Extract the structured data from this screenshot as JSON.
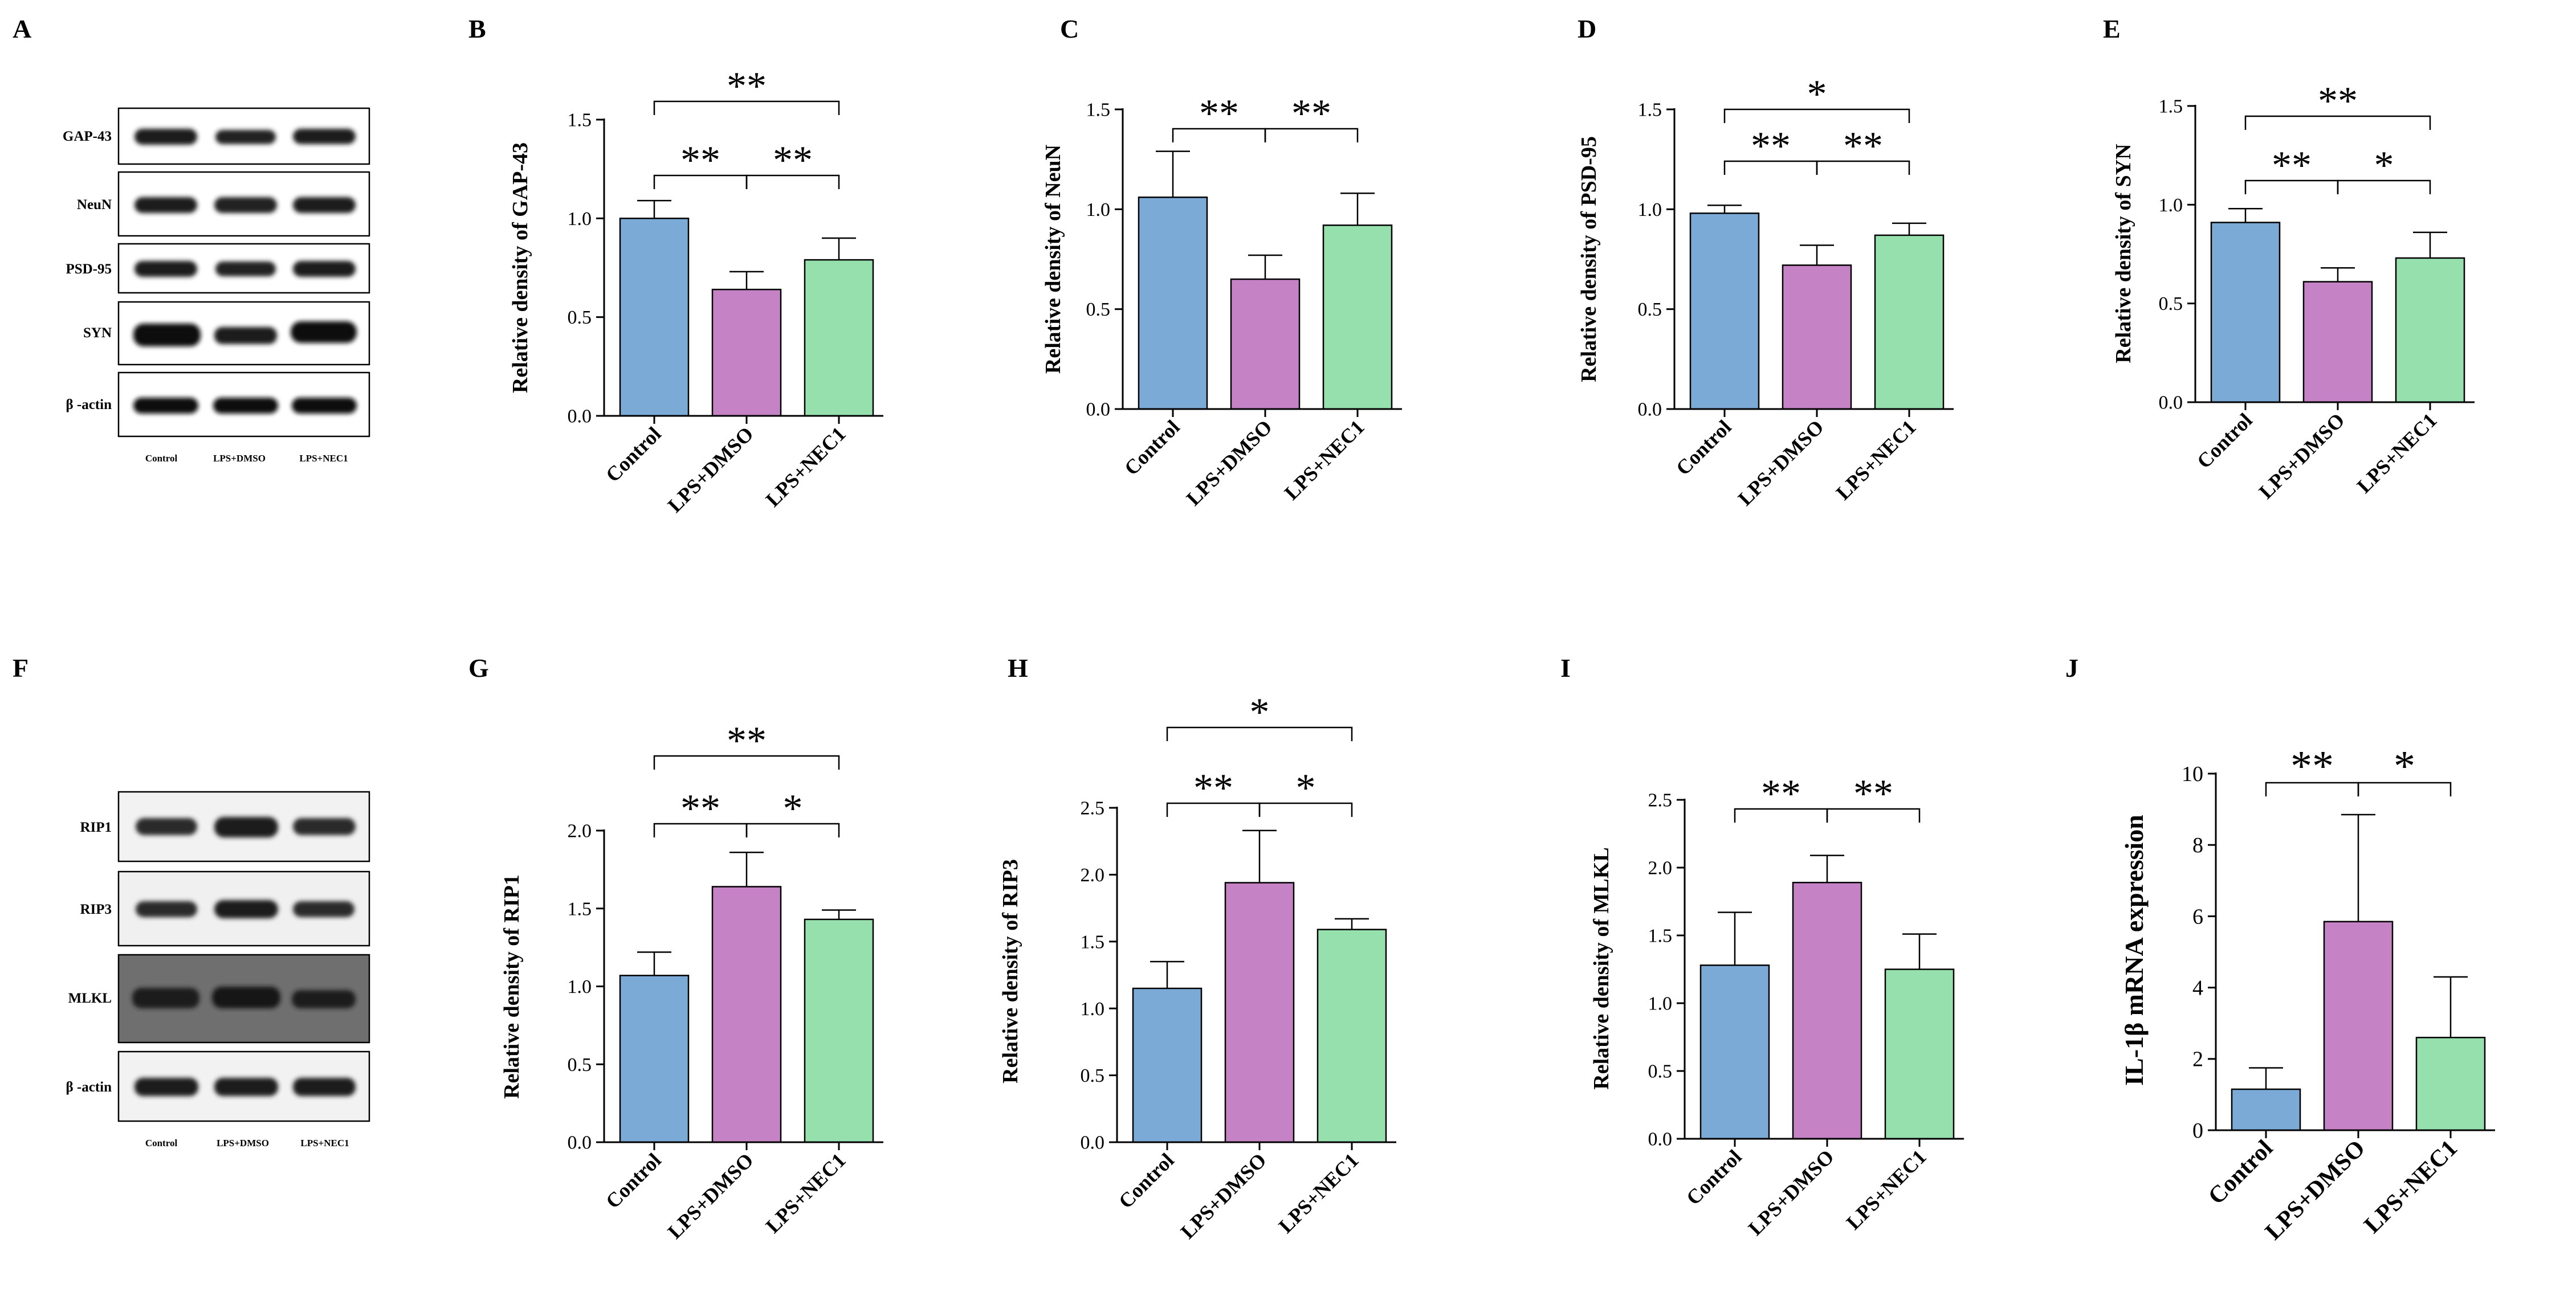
{
  "colors": {
    "control": "#7BAAD6",
    "lps_dmso": "#C583C5",
    "lps_nec1": "#96E0AE",
    "axis": "#000000"
  },
  "blots": [
    {
      "letter": "A",
      "proteins": [
        "GAP-43",
        "NeuN",
        "PSD-95",
        "SYN",
        "β -actin"
      ],
      "conditions": [
        "Control",
        "LPS+DMSO",
        "LPS+NEC1"
      ]
    },
    {
      "letter": "F",
      "proteins": [
        "RIP1",
        "RIP3",
        "MLKL",
        "β -actin"
      ],
      "conditions": [
        "Control",
        "LPS+DMSO",
        "LPS+NEC1"
      ]
    }
  ],
  "chart_data": [
    {
      "letter": "B",
      "type": "bar",
      "categories": [
        "Control",
        "LPS+DMSO",
        "LPS+NEC1"
      ],
      "values": [
        1.0,
        0.64,
        0.79
      ],
      "errors": [
        0.09,
        0.09,
        0.11
      ],
      "ylabel": "Relative density of GAP-43",
      "ylim": [
        0,
        1.5
      ],
      "ticks": [
        0.0,
        0.5,
        1.0,
        1.5
      ],
      "tick_labels": [
        "0.0",
        "0.5",
        "1.0",
        "1.5"
      ],
      "sig": [
        {
          "from": 0,
          "to": 1,
          "text": "**",
          "level": 1
        },
        {
          "from": 1,
          "to": 2,
          "text": "**",
          "level": 1
        },
        {
          "from": 0,
          "to": 2,
          "text": "**",
          "level": 2
        }
      ]
    },
    {
      "letter": "C",
      "type": "bar",
      "categories": [
        "Control",
        "LPS+DMSO",
        "LPS+NEC1"
      ],
      "values": [
        1.06,
        0.65,
        0.92
      ],
      "errors": [
        0.23,
        0.12,
        0.16
      ],
      "ylabel": "Relative density of NeuN",
      "ylim": [
        0,
        1.5
      ],
      "ticks": [
        0.0,
        0.5,
        1.0,
        1.5
      ],
      "tick_labels": [
        "0.0",
        "0.5",
        "1.0",
        "1.5"
      ],
      "sig": [
        {
          "from": 0,
          "to": 1,
          "text": "**",
          "level": 1
        },
        {
          "from": 1,
          "to": 2,
          "text": "**",
          "level": 1
        }
      ]
    },
    {
      "letter": "D",
      "type": "bar",
      "categories": [
        "Control",
        "LPS+DMSO",
        "LPS+NEC1"
      ],
      "values": [
        0.98,
        0.72,
        0.87
      ],
      "errors": [
        0.04,
        0.1,
        0.06
      ],
      "ylabel": "Relative density of PSD-95",
      "ylim": [
        0,
        1.5
      ],
      "ticks": [
        0.0,
        0.5,
        1.0,
        1.5
      ],
      "tick_labels": [
        "0.0",
        "0.5",
        "1.0",
        "1.5"
      ],
      "sig": [
        {
          "from": 0,
          "to": 1,
          "text": "**",
          "level": 1
        },
        {
          "from": 1,
          "to": 2,
          "text": "**",
          "level": 1
        },
        {
          "from": 0,
          "to": 2,
          "text": "*",
          "level": 2
        }
      ]
    },
    {
      "letter": "E",
      "type": "bar",
      "categories": [
        "Control",
        "LPS+DMSO",
        "LPS+NEC1"
      ],
      "values": [
        0.91,
        0.61,
        0.73
      ],
      "errors": [
        0.07,
        0.07,
        0.13
      ],
      "ylabel": "Relative density of SYN",
      "ylim": [
        0,
        1.5
      ],
      "ticks": [
        0.0,
        0.5,
        1.0,
        1.5
      ],
      "tick_labels": [
        "0.0",
        "0.5",
        "1.0",
        "1.5"
      ],
      "sig": [
        {
          "from": 0,
          "to": 1,
          "text": "**",
          "level": 1
        },
        {
          "from": 1,
          "to": 2,
          "text": "*",
          "level": 1
        },
        {
          "from": 0,
          "to": 2,
          "text": "**",
          "level": 2
        }
      ]
    },
    {
      "letter": "G",
      "type": "bar",
      "categories": [
        "Control",
        "LPS+DMSO",
        "LPS+NEC1"
      ],
      "values": [
        1.07,
        1.64,
        1.43
      ],
      "errors": [
        0.15,
        0.22,
        0.06
      ],
      "ylabel": "Relative density of RIP1",
      "ylim": [
        0,
        2.0
      ],
      "ticks": [
        0.0,
        0.5,
        1.0,
        1.5,
        2.0
      ],
      "tick_labels": [
        "0.0",
        "0.5",
        "1.0",
        "1.5",
        "2.0"
      ],
      "sig": [
        {
          "from": 0,
          "to": 1,
          "text": "**",
          "level": 1
        },
        {
          "from": 1,
          "to": 2,
          "text": "*",
          "level": 1
        },
        {
          "from": 0,
          "to": 2,
          "text": "**",
          "level": 2
        }
      ]
    },
    {
      "letter": "H",
      "type": "bar",
      "categories": [
        "Control",
        "LPS+DMSO",
        "LPS+NEC1"
      ],
      "values": [
        1.15,
        1.94,
        1.59
      ],
      "errors": [
        0.2,
        0.39,
        0.08
      ],
      "ylabel": "Relative density of RIP3",
      "ylim": [
        0,
        2.5
      ],
      "ticks": [
        0.0,
        0.5,
        1.0,
        1.5,
        2.0,
        2.5
      ],
      "tick_labels": [
        "0.0",
        "0.5",
        "1.0",
        "1.5",
        "2.0",
        "2.5"
      ],
      "sig": [
        {
          "from": 0,
          "to": 1,
          "text": "**",
          "level": 1
        },
        {
          "from": 1,
          "to": 2,
          "text": "*",
          "level": 1
        },
        {
          "from": 0,
          "to": 2,
          "text": "*",
          "level": 2
        }
      ]
    },
    {
      "letter": "I",
      "type": "bar",
      "categories": [
        "Control",
        "LPS+DMSO",
        "LPS+NEC1"
      ],
      "values": [
        1.28,
        1.89,
        1.25
      ],
      "errors": [
        0.39,
        0.2,
        0.26
      ],
      "ylabel": "Relative density of MLKL",
      "ylim": [
        0,
        2.5
      ],
      "ticks": [
        0.0,
        0.5,
        1.0,
        1.5,
        2.0,
        2.5
      ],
      "tick_labels": [
        "0.0",
        "0.5",
        "1.0",
        "1.5",
        "2.0",
        "2.5"
      ],
      "sig": [
        {
          "from": 0,
          "to": 1,
          "text": "**",
          "level": 1
        },
        {
          "from": 1,
          "to": 2,
          "text": "**",
          "level": 1
        }
      ]
    },
    {
      "letter": "J",
      "type": "bar",
      "categories": [
        "Control",
        "LPS+DMSO",
        "LPS+NEC1"
      ],
      "values": [
        1.15,
        5.85,
        2.6
      ],
      "errors": [
        0.6,
        3.0,
        1.7
      ],
      "ylabel": "IL-1β mRNA expression",
      "ylim": [
        0,
        10
      ],
      "ticks": [
        0,
        2,
        4,
        6,
        8,
        10
      ],
      "tick_labels": [
        "0",
        "2",
        "4",
        "6",
        "8",
        "10"
      ],
      "sig": [
        {
          "from": 0,
          "to": 1,
          "text": "**",
          "level": 1
        },
        {
          "from": 1,
          "to": 2,
          "text": "*",
          "level": 1
        }
      ]
    }
  ]
}
